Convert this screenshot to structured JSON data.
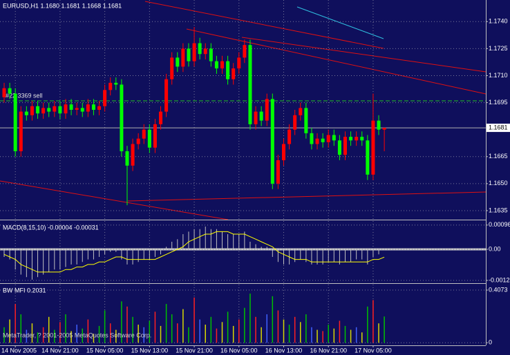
{
  "chart_data": [
    {
      "type": "candlestick",
      "title": "EURUSD,H1  1.1680 1.1681 1.1668 1.1681",
      "order_label": "#22 3369 sell",
      "categories": [
        null,
        null,
        "14 Nov 2005",
        null,
        null,
        null,
        null,
        null,
        null,
        null,
        "14 Nov 21:00",
        null,
        null,
        null,
        null,
        null,
        null,
        null,
        "15 Nov 05:00",
        null,
        null,
        null,
        null,
        null,
        null,
        null,
        "15 Nov 13:00",
        null,
        null,
        null,
        null,
        null,
        null,
        null,
        "15 Nov 21:00",
        null,
        null,
        null,
        null,
        null,
        null,
        null,
        "16 Nov 05:00",
        null,
        null,
        null,
        null,
        null,
        null,
        null,
        "16 Nov 13:00",
        null,
        null,
        null,
        null,
        null,
        null,
        null,
        "16 Nov 21:00",
        null,
        null,
        null,
        null,
        null,
        null,
        null,
        "17 Nov 05:00",
        null,
        null
      ],
      "open": [
        1.1698,
        1.1703,
        1.17,
        1.1668,
        1.169,
        1.1688,
        1.1693,
        1.1689,
        1.1692,
        1.169,
        1.1693,
        1.1689,
        1.1694,
        1.1691,
        1.1692,
        1.169,
        1.1694,
        1.1691,
        1.1693,
        1.1702,
        1.1706,
        1.1705,
        1.1668,
        1.166,
        1.1672,
        1.1675,
        1.168,
        1.167,
        1.1683,
        1.169,
        1.1708,
        1.172,
        1.1715,
        1.1725,
        1.1718,
        1.1728,
        1.1722,
        1.1725,
        1.1718,
        1.1714,
        1.1718,
        1.1708,
        1.1714,
        1.172,
        1.1727,
        1.1683,
        1.169,
        1.1685,
        1.1697,
        1.165,
        1.1663,
        1.1672,
        1.168,
        1.1688,
        1.1692,
        1.1678,
        1.1672,
        1.1675,
        1.1673,
        1.1677,
        1.1674,
        1.1666,
        1.1676,
        1.1674,
        1.1676,
        1.1674,
        1.1655,
        1.1685,
        1.168
      ],
      "high": [
        1.1706,
        1.1706,
        1.1703,
        1.1693,
        1.1693,
        1.1696,
        1.1696,
        1.1695,
        1.1695,
        1.1696,
        1.1696,
        1.1697,
        1.1697,
        1.1695,
        1.1695,
        1.1697,
        1.1697,
        1.1696,
        1.1705,
        1.1709,
        1.1709,
        1.1708,
        1.1671,
        1.1675,
        1.1678,
        1.1683,
        1.1683,
        1.1686,
        1.1693,
        1.1711,
        1.1723,
        1.1723,
        1.1728,
        1.1728,
        1.1737,
        1.1731,
        1.1728,
        1.1728,
        1.1721,
        1.1721,
        1.1721,
        1.1717,
        1.1723,
        1.173,
        1.173,
        1.1693,
        1.1693,
        1.17,
        1.17,
        1.1666,
        1.1675,
        1.1683,
        1.1691,
        1.1695,
        1.1695,
        1.1681,
        1.1678,
        1.1678,
        1.168,
        1.168,
        1.1677,
        1.1679,
        1.1679,
        1.1679,
        1.1679,
        1.1677,
        1.17,
        1.1688,
        1.1681
      ],
      "low": [
        1.1695,
        1.1697,
        1.1665,
        1.1665,
        1.1685,
        1.1685,
        1.1686,
        1.1686,
        1.1687,
        1.1687,
        1.1686,
        1.1686,
        1.1688,
        1.1688,
        1.1687,
        1.1687,
        1.1688,
        1.1688,
        1.169,
        1.1699,
        1.1702,
        1.1665,
        1.1638,
        1.1657,
        1.1669,
        1.1672,
        1.1667,
        1.1667,
        1.168,
        1.1687,
        1.1705,
        1.1712,
        1.1712,
        1.1715,
        1.1715,
        1.1719,
        1.1719,
        1.1715,
        1.1711,
        1.1711,
        1.1705,
        1.1705,
        1.1711,
        1.1717,
        1.168,
        1.168,
        1.1682,
        1.1682,
        1.1647,
        1.1647,
        1.166,
        1.1669,
        1.1677,
        1.1685,
        1.1675,
        1.1669,
        1.1669,
        1.167,
        1.167,
        1.1671,
        1.1663,
        1.1663,
        1.1671,
        1.1671,
        1.1671,
        1.1652,
        1.1652,
        1.1677,
        1.1668
      ],
      "close": [
        1.1703,
        1.17,
        1.1668,
        1.169,
        1.1688,
        1.1693,
        1.1689,
        1.1692,
        1.169,
        1.1693,
        1.1689,
        1.1694,
        1.1691,
        1.1692,
        1.169,
        1.1694,
        1.1691,
        1.1693,
        1.1702,
        1.1706,
        1.1705,
        1.1668,
        1.166,
        1.1672,
        1.1675,
        1.168,
        1.167,
        1.1683,
        1.169,
        1.1708,
        1.172,
        1.1715,
        1.1725,
        1.1718,
        1.1728,
        1.1722,
        1.1725,
        1.1718,
        1.1714,
        1.1718,
        1.1708,
        1.1714,
        1.172,
        1.1727,
        1.1683,
        1.169,
        1.1685,
        1.1697,
        1.165,
        1.1663,
        1.1672,
        1.168,
        1.1688,
        1.1692,
        1.1678,
        1.1672,
        1.1675,
        1.1673,
        1.1677,
        1.1674,
        1.1666,
        1.1676,
        1.1674,
        1.1676,
        1.1674,
        1.1655,
        1.1685,
        1.168,
        1.1681
      ],
      "bull_color": "#ff0000",
      "bear_color": "#00ff00",
      "current_price": 1.1681,
      "ylim": [
        1.163,
        1.1752
      ],
      "yticks": [
        {
          "value": 1.174,
          "label": "1.1740"
        },
        1.1725,
        {
          "value": 1.171,
          "label": "1.1710"
        },
        1.1695,
        1.1665,
        {
          "value": 1.165,
          "label": "1.1650"
        },
        1.1635
      ],
      "grid": true
    },
    {
      "type": "macd",
      "title": "MACD(8,15,10) -0.00004 -0.00031",
      "values": [
        -0.0003,
        -0.0004,
        -0.0008,
        -0.001,
        -0.0011,
        -0.0012,
        -0.0011,
        -0.001,
        -0.0009,
        -0.0008,
        -0.0008,
        -0.0007,
        -0.0006,
        -0.0006,
        -0.0005,
        -0.0004,
        -0.0004,
        -0.0003,
        -0.0002,
        -0.0001,
        -0.0001,
        -0.0004,
        -0.0006,
        -0.0006,
        -0.0005,
        -0.0004,
        -0.0004,
        -0.0003,
        -0.0002,
        0.0001,
        0.0003,
        0.0004,
        0.0006,
        0.0007,
        0.0008,
        0.0008,
        0.0009,
        0.0008,
        0.0008,
        0.0007,
        0.0006,
        0.0006,
        0.0006,
        0.0007,
        0.0003,
        0.0002,
        0.0001,
        0.0001,
        -0.0003,
        -0.0005,
        -0.0006,
        -0.0006,
        -0.0005,
        -0.0004,
        -0.0005,
        -0.0006,
        -0.0006,
        -0.0006,
        -0.0005,
        -0.0005,
        -0.0006,
        -0.0005,
        -0.0005,
        -0.0004,
        -0.0004,
        -0.0006,
        -0.0003,
        -0.0002,
        -4e-05
      ],
      "signal": [
        -0.0002,
        -0.0003,
        -0.0004,
        -0.0006,
        -0.0007,
        -0.0008,
        -0.0009,
        -0.0009,
        -0.0009,
        -0.0009,
        -0.0009,
        -0.0008,
        -0.0008,
        -0.0007,
        -0.0007,
        -0.0006,
        -0.0006,
        -0.0005,
        -0.0005,
        -0.0004,
        -0.0003,
        -0.0003,
        -0.0004,
        -0.0004,
        -0.0004,
        -0.0004,
        -0.0004,
        -0.0004,
        -0.0003,
        -0.0002,
        -0.0001,
        0.0,
        0.0001,
        0.0003,
        0.0004,
        0.0005,
        0.0006,
        0.0006,
        0.0007,
        0.0007,
        0.0007,
        0.0006,
        0.0006,
        0.0006,
        0.0005,
        0.0004,
        0.0003,
        0.0002,
        0.0001,
        -0.0001,
        -0.0002,
        -0.0003,
        -0.0004,
        -0.0004,
        -0.0004,
        -0.0005,
        -0.0005,
        -0.0005,
        -0.0005,
        -0.0005,
        -0.0005,
        -0.0005,
        -0.0005,
        -0.0005,
        -0.0005,
        -0.0005,
        -0.0004,
        -0.0004,
        -0.00031
      ],
      "color": "#c0c0c0",
      "signal_color": "#ffff00",
      "ylim": [
        -0.00134,
        0.00112
      ],
      "yticks": [
        0.00096,
        {
          "value": 0,
          "label": "0.00"
        },
        -0.00123
      ],
      "grid": true
    },
    {
      "type": "bar",
      "title": "BW MFI 0.2031",
      "values": [
        0.12,
        0.18,
        0.3,
        0.22,
        0.1,
        0.15,
        0.08,
        0.12,
        0.2,
        0.1,
        0.16,
        0.22,
        0.09,
        0.14,
        0.11,
        0.18,
        0.07,
        0.13,
        0.25,
        0.15,
        0.1,
        0.32,
        0.28,
        0.2,
        0.14,
        0.12,
        0.17,
        0.24,
        0.13,
        0.3,
        0.22,
        0.15,
        0.26,
        0.12,
        0.35,
        0.18,
        0.14,
        0.2,
        0.11,
        0.16,
        0.24,
        0.13,
        0.18,
        0.27,
        0.38,
        0.2,
        0.12,
        0.22,
        0.36,
        0.25,
        0.18,
        0.14,
        0.2,
        0.16,
        0.22,
        0.12,
        0.1,
        0.09,
        0.14,
        0.11,
        0.17,
        0.13,
        0.1,
        0.12,
        0.08,
        0.28,
        0.33,
        0.15,
        0.2031
      ],
      "colors": [
        "#00c000",
        "#d8d800",
        "#ff2020",
        "#00c000",
        "#4060ff",
        "#d8d800",
        "#00c000",
        "#ff2020",
        "#d8d800",
        "#00c000",
        "#ff2020",
        "#00c000",
        "#d8d800",
        "#4060ff",
        "#00c000",
        "#ff2020",
        "#d8d800",
        "#00c000",
        "#00c000",
        "#ff2020",
        "#d8d800",
        "#00c000",
        "#ff2020",
        "#00c000",
        "#d8d800",
        "#4060ff",
        "#00c000",
        "#ff2020",
        "#d8d800",
        "#00c000",
        "#00c000",
        "#ff2020",
        "#d8d800",
        "#00c000",
        "#ff2020",
        "#4060ff",
        "#d8d800",
        "#00c000",
        "#ff2020",
        "#d8d800",
        "#00c000",
        "#d8d800",
        "#ff2020",
        "#00c000",
        "#00c000",
        "#ff2020",
        "#d8d800",
        "#4060ff",
        "#00c000",
        "#ff2020",
        "#d8d800",
        "#00c000",
        "#ff2020",
        "#d8d800",
        "#00c000",
        "#4060ff",
        "#d8d800",
        "#ff2020",
        "#00c000",
        "#d8d800",
        "#ff2020",
        "#00c000",
        "#d8d800",
        "#4060ff",
        "#d8d800",
        "#00c000",
        "#ff2020",
        "#d8d800",
        "#00c000"
      ],
      "ylim": [
        -0.02,
        0.45
      ],
      "yticks": [
        0.4073,
        0
      ],
      "grid": true
    }
  ],
  "footer": "MetaTrader, ? 2001-2005 MetaQuotes Software Corp."
}
